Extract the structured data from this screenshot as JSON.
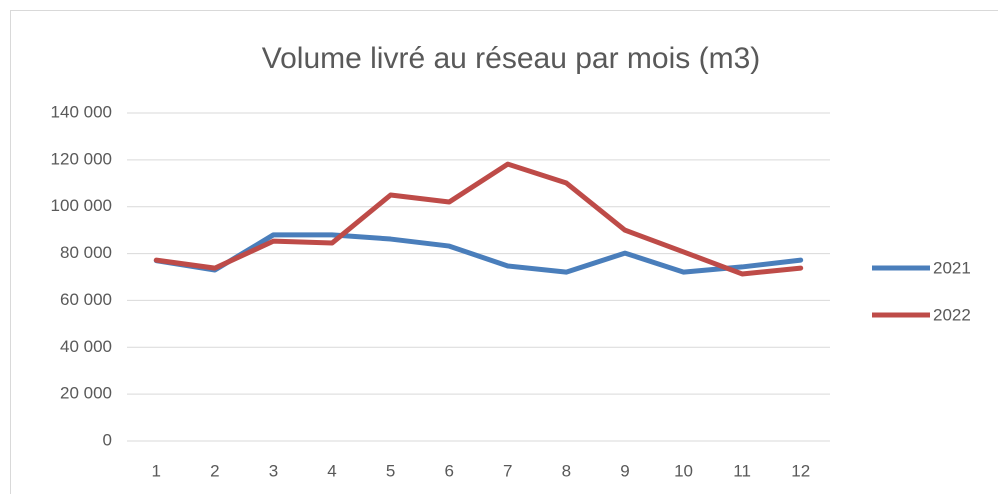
{
  "chart_data": {
    "type": "line",
    "title": "Volume livré au réseau par mois (m3)",
    "categories": [
      "1",
      "2",
      "3",
      "4",
      "5",
      "6",
      "7",
      "8",
      "9",
      "10",
      "11",
      "12"
    ],
    "series": [
      {
        "name": "2021",
        "color": "#4a7ebb",
        "values": [
          77000,
          73000,
          88000,
          88000,
          86200,
          83200,
          74700,
          72100,
          80200,
          72100,
          74300,
          77200
        ]
      },
      {
        "name": "2022",
        "color": "#be4b48",
        "values": [
          77200,
          73800,
          85300,
          84500,
          105000,
          102000,
          118200,
          110100,
          90000,
          80700,
          71300,
          73800
        ]
      }
    ],
    "ylim": [
      0,
      140000
    ],
    "yticks": [
      0,
      {
        "value": 20000,
        "label": "20 000"
      },
      {
        "value": 40000,
        "label": "40 000"
      },
      {
        "value": 60000,
        "label": "60 000"
      },
      {
        "value": 80000,
        "label": "80 000"
      },
      {
        "value": 100000,
        "label": "100 000"
      },
      {
        "value": 120000,
        "label": "120 000"
      },
      {
        "value": 140000,
        "label": "140 000"
      }
    ],
    "grid": true,
    "legend": "right"
  }
}
